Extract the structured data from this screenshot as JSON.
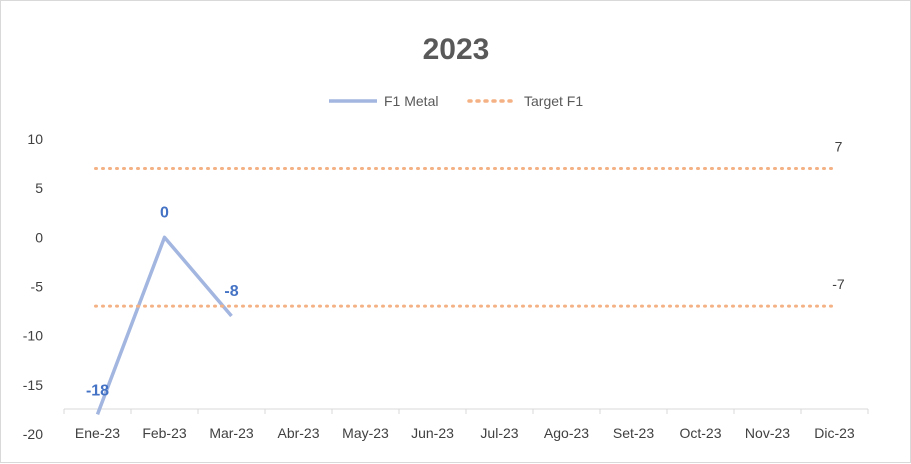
{
  "chart_data": {
    "type": "line",
    "title": "2023",
    "categories": [
      "Ene-23",
      "Feb-23",
      "Mar-23",
      "Abr-23",
      "May-23",
      "Jun-23",
      "Jul-23",
      "Ago-23",
      "Set-23",
      "Oct-23",
      "Nov-23",
      "Dic-23"
    ],
    "ylim": [
      -20,
      10
    ],
    "yticks": [
      10,
      5,
      0,
      -5,
      -10,
      -15,
      -20
    ],
    "legend_position": "top",
    "grid": false,
    "series": [
      {
        "name": "F1 Metal",
        "style": "solid",
        "color": "#a3b6e0",
        "label_color": "#4472c4",
        "values": [
          -18,
          0,
          -8,
          null,
          null,
          null,
          null,
          null,
          null,
          null,
          null,
          null
        ],
        "data_labels": [
          "-18",
          "0",
          "-8"
        ]
      },
      {
        "name": "Target F1",
        "style": "dotted",
        "color": "#f4b183",
        "values": [
          7,
          7,
          7,
          7,
          7,
          7,
          7,
          7,
          7,
          7,
          7,
          7
        ],
        "end_label": "7"
      },
      {
        "name": "Target F1",
        "style": "dotted",
        "color": "#f4b183",
        "values": [
          -7,
          -7,
          -7,
          -7,
          -7,
          -7,
          -7,
          -7,
          -7,
          -7,
          -7,
          -7
        ],
        "end_label": "-7"
      }
    ]
  }
}
